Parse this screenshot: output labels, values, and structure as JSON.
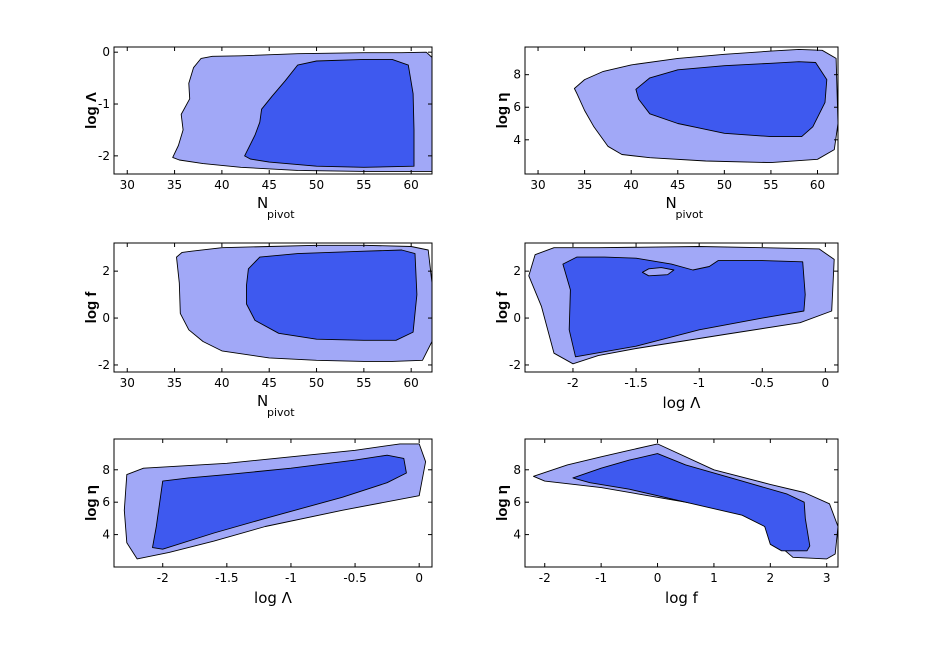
{
  "colors": {
    "outer_fill": "#a1a8f7",
    "inner_fill": "#3e59ef",
    "stroke": "#000000",
    "background": "#ffffff"
  },
  "chart_data": [
    {
      "type": "contour",
      "xlabel": "N",
      "xlabel_sub": "pivot",
      "ylabel": "log Λ",
      "xlim": [
        28.6,
        62.2
      ],
      "ylim": [
        -2.35,
        0.1
      ],
      "xticks": [
        30,
        35,
        40,
        45,
        50,
        55,
        60
      ],
      "yticks": [
        -2,
        -1,
        0
      ],
      "regions": [
        {
          "level": "outer",
          "points": [
            [
              34.8,
              -2.03
            ],
            [
              35.4,
              -1.8
            ],
            [
              35.9,
              -1.5
            ],
            [
              35.7,
              -1.2
            ],
            [
              36.6,
              -0.9
            ],
            [
              36.5,
              -0.6
            ],
            [
              37.0,
              -0.3
            ],
            [
              37.8,
              -0.12
            ],
            [
              39,
              -0.08
            ],
            [
              42,
              -0.07
            ],
            [
              48,
              -0.03
            ],
            [
              55,
              -0.01
            ],
            [
              59,
              -0.01
            ],
            [
              61.6,
              0.0
            ],
            [
              62.2,
              -0.1
            ],
            [
              62.2,
              -2.3
            ],
            [
              55,
              -2.3
            ],
            [
              48,
              -2.28
            ],
            [
              42,
              -2.22
            ],
            [
              38,
              -2.15
            ],
            [
              35.5,
              -2.08
            ]
          ]
        },
        {
          "level": "inner",
          "points": [
            [
              42.4,
              -2.0
            ],
            [
              43.5,
              -1.6
            ],
            [
              44.0,
              -1.35
            ],
            [
              44.2,
              -1.1
            ],
            [
              45.3,
              -0.85
            ],
            [
              46.7,
              -0.55
            ],
            [
              48.0,
              -0.25
            ],
            [
              50,
              -0.17
            ],
            [
              55,
              -0.14
            ],
            [
              58,
              -0.14
            ],
            [
              59.7,
              -0.25
            ],
            [
              60.2,
              -0.8
            ],
            [
              60.3,
              -1.5
            ],
            [
              60.3,
              -2.2
            ],
            [
              55,
              -2.22
            ],
            [
              50,
              -2.2
            ],
            [
              45,
              -2.12
            ],
            [
              43,
              -2.06
            ]
          ]
        }
      ]
    },
    {
      "type": "contour",
      "xlabel": "N",
      "xlabel_sub": "pivot",
      "ylabel": "log η",
      "xlim": [
        28.6,
        62.2
      ],
      "ylim": [
        1.9,
        9.7
      ],
      "xticks": [
        30,
        35,
        40,
        45,
        50,
        55,
        60
      ],
      "yticks": [
        4,
        6,
        8
      ],
      "regions": [
        {
          "level": "outer",
          "points": [
            [
              33.9,
              7.15
            ],
            [
              35,
              7.7
            ],
            [
              37,
              8.2
            ],
            [
              40,
              8.6
            ],
            [
              45,
              9.0
            ],
            [
              50,
              9.25
            ],
            [
              55,
              9.45
            ],
            [
              58,
              9.55
            ],
            [
              60.5,
              9.5
            ],
            [
              62.0,
              9.0
            ],
            [
              62.2,
              5.0
            ],
            [
              61.8,
              3.4
            ],
            [
              60,
              2.8
            ],
            [
              55,
              2.6
            ],
            [
              48,
              2.7
            ],
            [
              42,
              2.9
            ],
            [
              39,
              3.1
            ],
            [
              37.5,
              3.6
            ],
            [
              36,
              4.8
            ],
            [
              35,
              5.8
            ],
            [
              34.2,
              6.8
            ]
          ]
        },
        {
          "level": "inner",
          "points": [
            [
              40.5,
              7.1
            ],
            [
              42,
              7.8
            ],
            [
              45,
              8.3
            ],
            [
              50,
              8.55
            ],
            [
              55,
              8.7
            ],
            [
              58,
              8.8
            ],
            [
              59.8,
              8.75
            ],
            [
              61.0,
              7.7
            ],
            [
              60.8,
              6.3
            ],
            [
              59.5,
              4.8
            ],
            [
              58.3,
              4.2
            ],
            [
              55,
              4.2
            ],
            [
              50,
              4.4
            ],
            [
              45,
              5.0
            ],
            [
              42,
              5.6
            ],
            [
              40.8,
              6.5
            ]
          ]
        }
      ]
    },
    {
      "type": "contour",
      "xlabel": "N",
      "xlabel_sub": "pivot",
      "ylabel": "log f",
      "xlim": [
        28.6,
        62.2
      ],
      "ylim": [
        -2.3,
        3.2
      ],
      "xticks": [
        30,
        35,
        40,
        45,
        50,
        55,
        60
      ],
      "yticks": [
        -2,
        0,
        2
      ],
      "regions": [
        {
          "level": "outer",
          "points": [
            [
              35.2,
              2.6
            ],
            [
              35.8,
              2.8
            ],
            [
              36.8,
              2.85
            ],
            [
              40,
              3.0
            ],
            [
              45,
              3.05
            ],
            [
              50,
              3.1
            ],
            [
              55,
              3.1
            ],
            [
              60,
              3.05
            ],
            [
              61.8,
              2.9
            ],
            [
              62.2,
              1.5
            ],
            [
              62.2,
              -1.0
            ],
            [
              61.2,
              -1.8
            ],
            [
              58,
              -1.85
            ],
            [
              55,
              -1.85
            ],
            [
              50,
              -1.8
            ],
            [
              45,
              -1.7
            ],
            [
              40,
              -1.4
            ],
            [
              38,
              -1.0
            ],
            [
              36.5,
              -0.5
            ],
            [
              35.6,
              0.2
            ],
            [
              35.5,
              1.5
            ]
          ]
        },
        {
          "level": "inner",
          "points": [
            [
              42.6,
              1.4
            ],
            [
              42.8,
              2.1
            ],
            [
              44,
              2.6
            ],
            [
              48,
              2.75
            ],
            [
              55,
              2.85
            ],
            [
              59,
              2.9
            ],
            [
              60.4,
              2.75
            ],
            [
              60.6,
              1.0
            ],
            [
              60.2,
              -0.6
            ],
            [
              58.4,
              -0.95
            ],
            [
              55,
              -0.95
            ],
            [
              50,
              -0.9
            ],
            [
              46,
              -0.65
            ],
            [
              43.5,
              -0.1
            ],
            [
              42.6,
              0.6
            ]
          ]
        }
      ]
    },
    {
      "type": "contour",
      "xlabel": "log Λ",
      "ylabel": "log f",
      "xlim": [
        -2.38,
        0.1
      ],
      "ylim": [
        -2.3,
        3.2
      ],
      "xticks": [
        -2,
        -1.5,
        -1,
        -0.5,
        0
      ],
      "yticks": [
        -2,
        0,
        2
      ],
      "regions": [
        {
          "level": "outer",
          "points": [
            [
              -2.3,
              2.7
            ],
            [
              -2.15,
              3.0
            ],
            [
              -1.8,
              3.0
            ],
            [
              -1.0,
              3.05
            ],
            [
              -0.5,
              3.0
            ],
            [
              -0.05,
              2.95
            ],
            [
              0.07,
              2.5
            ],
            [
              0.05,
              0.3
            ],
            [
              -0.2,
              -0.2
            ],
            [
              -0.8,
              -0.7
            ],
            [
              -1.5,
              -1.3
            ],
            [
              -1.8,
              -1.6
            ],
            [
              -2.0,
              -1.95
            ],
            [
              -2.15,
              -1.5
            ],
            [
              -2.2,
              -0.5
            ],
            [
              -2.25,
              0.5
            ],
            [
              -2.35,
              1.8
            ]
          ]
        },
        {
          "level": "inner",
          "points": [
            [
              -2.08,
              2.3
            ],
            [
              -1.97,
              2.6
            ],
            [
              -1.75,
              2.6
            ],
            [
              -1.5,
              2.55
            ],
            [
              -1.22,
              2.3
            ],
            [
              -1.05,
              2.05
            ],
            [
              -0.92,
              2.2
            ],
            [
              -0.85,
              2.45
            ],
            [
              -0.5,
              2.45
            ],
            [
              -0.18,
              2.4
            ],
            [
              -0.16,
              1.0
            ],
            [
              -0.17,
              0.3
            ],
            [
              -0.5,
              0.0
            ],
            [
              -1.0,
              -0.5
            ],
            [
              -1.5,
              -1.2
            ],
            [
              -1.98,
              -1.65
            ],
            [
              -2.03,
              -0.5
            ],
            [
              -2.02,
              1.2
            ]
          ]
        },
        {
          "level": "outer",
          "points": [
            [
              -1.45,
              1.95
            ],
            [
              -1.4,
              2.1
            ],
            [
              -1.3,
              2.15
            ],
            [
              -1.2,
              2.05
            ],
            [
              -1.25,
              1.85
            ],
            [
              -1.4,
              1.8
            ]
          ]
        }
      ]
    },
    {
      "type": "contour",
      "xlabel": "log Λ",
      "ylabel": "log η",
      "xlim": [
        -2.38,
        0.1
      ],
      "ylim": [
        2.0,
        9.9
      ],
      "xticks": [
        -2,
        -1.5,
        -1,
        -0.5,
        0
      ],
      "yticks": [
        4,
        6,
        8
      ],
      "regions": [
        {
          "level": "outer",
          "points": [
            [
              -2.28,
              7.7
            ],
            [
              -2.15,
              8.1
            ],
            [
              -1.5,
              8.4
            ],
            [
              -1.0,
              8.8
            ],
            [
              -0.5,
              9.2
            ],
            [
              -0.15,
              9.6
            ],
            [
              0.0,
              9.6
            ],
            [
              0.05,
              8.5
            ],
            [
              0.0,
              6.4
            ],
            [
              -0.6,
              5.5
            ],
            [
              -1.2,
              4.5
            ],
            [
              -1.6,
              3.6
            ],
            [
              -1.95,
              2.9
            ],
            [
              -2.2,
              2.5
            ],
            [
              -2.28,
              3.5
            ],
            [
              -2.3,
              5.5
            ]
          ]
        },
        {
          "level": "inner",
          "points": [
            [
              -2.0,
              7.3
            ],
            [
              -1.8,
              7.5
            ],
            [
              -1.5,
              7.7
            ],
            [
              -1.0,
              8.1
            ],
            [
              -0.5,
              8.6
            ],
            [
              -0.25,
              8.9
            ],
            [
              -0.12,
              8.7
            ],
            [
              -0.1,
              7.8
            ],
            [
              -0.25,
              7.2
            ],
            [
              -0.6,
              6.3
            ],
            [
              -1.2,
              5.0
            ],
            [
              -1.6,
              4.1
            ],
            [
              -2.0,
              3.1
            ],
            [
              -2.08,
              3.2
            ],
            [
              -2.05,
              4.5
            ],
            [
              -2.02,
              6.2
            ]
          ]
        }
      ]
    },
    {
      "type": "contour",
      "xlabel": "log f",
      "ylabel": "log η",
      "xlim": [
        -2.35,
        3.2
      ],
      "ylim": [
        2.0,
        9.9
      ],
      "xticks": [
        -2,
        -1,
        0,
        1,
        2,
        3
      ],
      "yticks": [
        4,
        6,
        8
      ],
      "regions": [
        {
          "level": "outer",
          "points": [
            [
              -2.2,
              7.6
            ],
            [
              -2.0,
              7.3
            ],
            [
              -1.0,
              6.9
            ],
            [
              0.0,
              6.3
            ],
            [
              1.0,
              5.7
            ],
            [
              1.5,
              5.4
            ],
            [
              1.8,
              5.2
            ],
            [
              1.9,
              4.5
            ],
            [
              2.2,
              3.2
            ],
            [
              2.4,
              2.6
            ],
            [
              3.0,
              2.5
            ],
            [
              3.15,
              2.8
            ],
            [
              3.2,
              4.5
            ],
            [
              3.05,
              5.9
            ],
            [
              2.6,
              6.6
            ],
            [
              2.0,
              7.1
            ],
            [
              1.0,
              8.0
            ],
            [
              0.0,
              9.6
            ],
            [
              -0.5,
              9.2
            ],
            [
              -1.0,
              8.8
            ],
            [
              -1.6,
              8.3
            ]
          ]
        },
        {
          "level": "inner",
          "points": [
            [
              -1.5,
              7.5
            ],
            [
              -1.2,
              7.2
            ],
            [
              -0.5,
              6.8
            ],
            [
              0.5,
              6.0
            ],
            [
              1.5,
              5.2
            ],
            [
              1.9,
              4.5
            ],
            [
              2.0,
              3.4
            ],
            [
              2.2,
              3.0
            ],
            [
              2.65,
              3.0
            ],
            [
              2.7,
              3.3
            ],
            [
              2.62,
              5.0
            ],
            [
              2.6,
              6.0
            ],
            [
              2.3,
              6.5
            ],
            [
              1.5,
              7.3
            ],
            [
              0.5,
              8.3
            ],
            [
              0.0,
              9.0
            ],
            [
              -0.5,
              8.6
            ],
            [
              -1.0,
              8.1
            ]
          ]
        }
      ]
    }
  ]
}
